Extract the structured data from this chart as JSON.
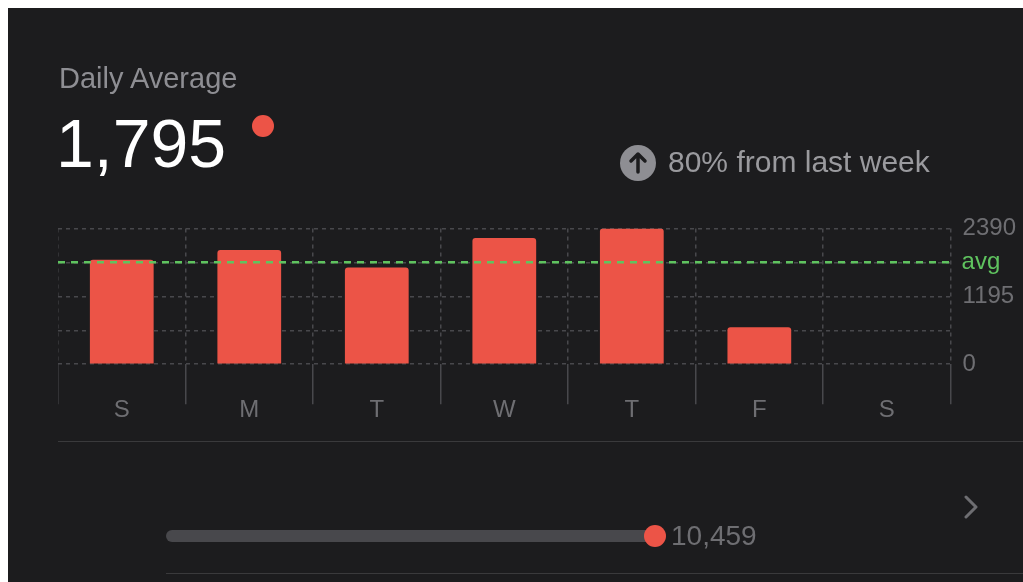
{
  "chart_data": {
    "type": "bar",
    "title": "Daily Average",
    "subtitle": "1,795",
    "annotations": [
      "80% from last week",
      "10,459"
    ],
    "categories": [
      "S",
      "M",
      "T",
      "W",
      "T",
      "F",
      "S"
    ],
    "values": [
      1840,
      2010,
      1700,
      2220,
      2390,
      650,
      0
    ],
    "color": "#ec5447",
    "ylim": [
      0,
      2390
    ],
    "yticks": [
      0,
      {
        "value": 597.5,
        "label": null
      },
      1195,
      {
        "value": 1792.5,
        "label": null
      },
      2390
    ],
    "grid": true,
    "ref_lines": [
      {
        "axis": "y",
        "value": 1795,
        "label": "avg",
        "color": "#5fc35f",
        "line_style": "dashed"
      }
    ]
  }
}
